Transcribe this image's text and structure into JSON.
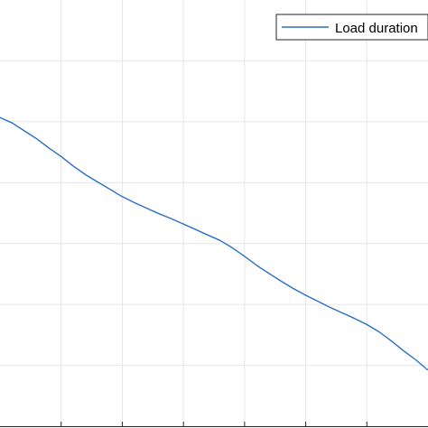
{
  "chart_data": {
    "type": "line",
    "title": "",
    "xlabel": "",
    "ylabel": "",
    "grid": true,
    "legend_position": "top-right",
    "xlim": [
      0,
      7
    ],
    "ylim": [
      0,
      7
    ],
    "series": [
      {
        "name": "Load duration",
        "color": "#2b6fc6",
        "x": [
          0,
          0.2,
          0.4,
          0.6,
          0.8,
          1.0,
          1.2,
          1.4,
          1.6,
          1.8,
          2.0,
          2.2,
          2.4,
          2.6,
          2.8,
          3.0,
          3.2,
          3.4,
          3.6,
          3.8,
          4.0,
          4.2,
          4.4,
          4.6,
          4.8,
          5.0,
          5.2,
          5.4,
          5.6,
          5.8,
          6.0,
          6.2,
          6.4,
          6.6,
          6.8,
          7.0
        ],
        "y": [
          5.07,
          4.98,
          4.85,
          4.72,
          4.57,
          4.43,
          4.27,
          4.13,
          4.01,
          3.89,
          3.77,
          3.67,
          3.58,
          3.49,
          3.41,
          3.32,
          3.23,
          3.14,
          3.05,
          2.93,
          2.79,
          2.64,
          2.51,
          2.38,
          2.26,
          2.15,
          2.05,
          1.95,
          1.86,
          1.77,
          1.67,
          1.55,
          1.4,
          1.24,
          1.09,
          0.92
        ]
      }
    ]
  }
}
